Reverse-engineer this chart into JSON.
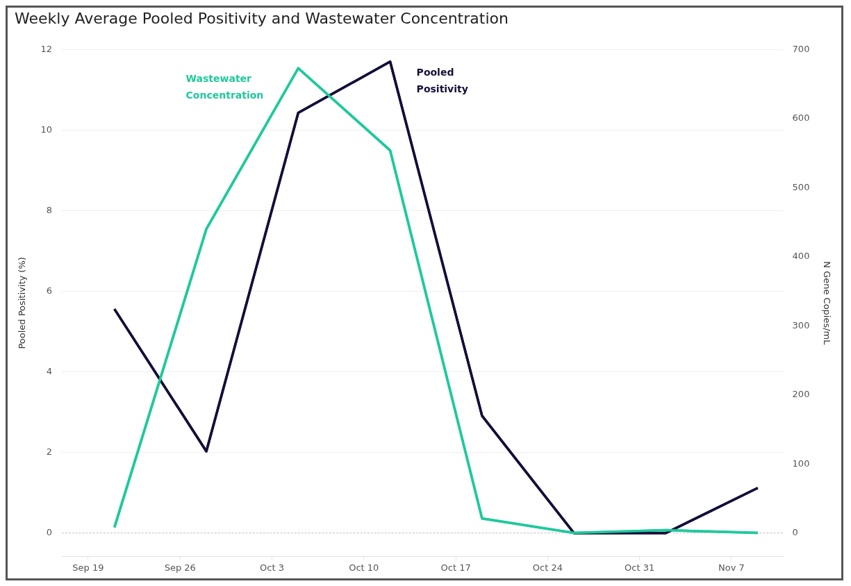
{
  "chart_data": {
    "type": "line",
    "title": "Weekly Average Pooled Positivity and Wastewater Concentration",
    "ylabel": "Pooled Positivity (%)",
    "y2label": "N Gene Copies/mL",
    "x": [
      "--09-21",
      "--09-28",
      "--10-05",
      "--10-12",
      "--10-19",
      "--10-26",
      "--11-02",
      "--11-09"
    ],
    "series": [
      {
        "name": "Pooled Positivity",
        "color": "#12103a",
        "values": [
          5.56,
          2.03,
          10.43,
          11.7,
          2.91,
          0,
          0,
          1.12
        ]
      },
      {
        "name": "Wastewater Concentration",
        "color": "#1fc99c",
        "axis": "y2",
        "values": [
          8,
          440,
          673,
          554,
          21,
          0,
          4,
          0
        ]
      }
    ],
    "xlim": [
      "--09-17",
      "--11-11"
    ],
    "xticks": [
      {
        "value": "--09-19",
        "label": "Sep 19"
      },
      {
        "value": "--09-26",
        "label": "Sep 26"
      },
      {
        "value": "--10-03",
        "label": "Oct 3"
      },
      {
        "value": "--10-10",
        "label": "Oct 10"
      },
      {
        "value": "--10-17",
        "label": "Oct 17"
      },
      {
        "value": "--10-24",
        "label": "Oct 24"
      },
      {
        "value": "--10-31",
        "label": "Oct 31"
      },
      {
        "value": "--11-07",
        "label": "Nov 7"
      }
    ],
    "ylim": [
      -0.58,
      12
    ],
    "yticks": [
      0,
      2,
      4,
      6,
      8,
      10,
      12
    ],
    "y2lim": [
      -34,
      700
    ],
    "y2ticks": [
      0,
      100,
      200,
      300,
      400,
      500,
      600,
      700
    ],
    "ref_lines": [
      {
        "axis": "y",
        "value": 0,
        "color": "#bbbbbb",
        "line_style": "dotted"
      }
    ],
    "grid": "y",
    "legend": false,
    "marker": "none",
    "line_style": "solid"
  }
}
